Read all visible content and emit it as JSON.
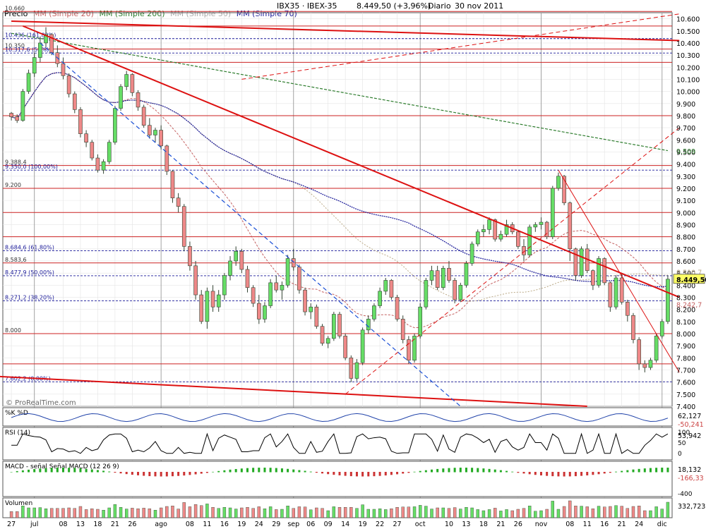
{
  "header": {
    "symbol": "IBX35 · IBEX-35",
    "last": "8.449,50 (+3,96%)",
    "period": "Diario",
    "date": "30 nov 2011",
    "legend": [
      {
        "text": "Precio",
        "color": "#8888cc"
      },
      {
        "text": "MM (Simple 20)",
        "color": "#c46060"
      },
      {
        "text": "MM (Simple 200)",
        "color": "#2e7d2e"
      },
      {
        "text": "MM (Simple 50)",
        "color": "#aaaaaa"
      },
      {
        "text": "MM (Simple 70)",
        "color": "#1a1a99"
      }
    ]
  },
  "watermark": "© ProRealTime.com",
  "colors": {
    "bull": "#66dd66",
    "bear": "#ee8888",
    "candle_edge": "#334433",
    "grid": "#c9c9c9",
    "sma20": "#c46060",
    "sma50": "#bbaa88",
    "sma70": "#1a1a99",
    "sma200": "#2e7d2e",
    "trend": "#dd1111",
    "level": "#cc2222",
    "panel_border": "#555555"
  },
  "chart_data": {
    "type": "candlestick",
    "price_axis": {
      "min": 7400,
      "max": 10650,
      "ticks": [
        "10.600",
        "10.500",
        "10.400",
        "10.300",
        "10.200",
        "10.100",
        "10.000",
        "9.900",
        "9.800",
        "9.700",
        "9.600",
        "9.500",
        "9.400",
        "9.300",
        "9.200",
        "9.100",
        "9.000",
        "8.900",
        "8.800",
        "8.700",
        "8.600",
        "8.500",
        "8.400",
        "8.300",
        "8.200",
        "8.100",
        "8.000",
        "7.900",
        "7.800",
        "7.700",
        "7.600",
        "7.500",
        "7.400"
      ]
    },
    "x_axis_labels": [
      {
        "label": "27",
        "i": 0
      },
      {
        "label": "jul",
        "i": 4
      },
      {
        "label": "08",
        "i": 9
      },
      {
        "label": "13",
        "i": 12
      },
      {
        "label": "18",
        "i": 15
      },
      {
        "label": "21",
        "i": 18
      },
      {
        "label": "26",
        "i": 21
      },
      {
        "label": "ago",
        "i": 26
      },
      {
        "label": "08",
        "i": 31
      },
      {
        "label": "11",
        "i": 34
      },
      {
        "label": "16",
        "i": 37
      },
      {
        "label": "19",
        "i": 40
      },
      {
        "label": "24",
        "i": 43
      },
      {
        "label": "29",
        "i": 46
      },
      {
        "label": "sep",
        "i": 49
      },
      {
        "label": "06",
        "i": 52
      },
      {
        "label": "09",
        "i": 55
      },
      {
        "label": "14",
        "i": 58
      },
      {
        "label": "19",
        "i": 61
      },
      {
        "label": "22",
        "i": 64
      },
      {
        "label": "27",
        "i": 67
      },
      {
        "label": "oct",
        "i": 71
      },
      {
        "label": "10",
        "i": 76
      },
      {
        "label": "13",
        "i": 79
      },
      {
        "label": "18",
        "i": 82
      },
      {
        "label": "21",
        "i": 85
      },
      {
        "label": "26",
        "i": 88
      },
      {
        "label": "nov",
        "i": 92
      },
      {
        "label": "08",
        "i": 97
      },
      {
        "label": "11",
        "i": 100
      },
      {
        "label": "16",
        "i": 103
      },
      {
        "label": "21",
        "i": 106
      },
      {
        "label": "24",
        "i": 109
      },
      {
        "label": "dic",
        "i": 113
      }
    ],
    "candles": [
      [
        9820,
        9830,
        9760,
        9790
      ],
      [
        9790,
        9810,
        9740,
        9760
      ],
      [
        9760,
        10020,
        9750,
        10000
      ],
      [
        10000,
        10180,
        9980,
        10150
      ],
      [
        10150,
        10320,
        10120,
        10280
      ],
      [
        10280,
        10450,
        10240,
        10400
      ],
      [
        10400,
        10530,
        10360,
        10470
      ],
      [
        10470,
        10480,
        10300,
        10320
      ],
      [
        10320,
        10380,
        10200,
        10230
      ],
      [
        10230,
        10280,
        10100,
        10130
      ],
      [
        10130,
        10150,
        9950,
        9980
      ],
      [
        9980,
        10000,
        9820,
        9850
      ],
      [
        9850,
        9870,
        9620,
        9650
      ],
      [
        9650,
        9680,
        9540,
        9580
      ],
      [
        9580,
        9600,
        9430,
        9450
      ],
      [
        9450,
        9480,
        9330,
        9350
      ],
      [
        9350,
        9440,
        9320,
        9420
      ],
      [
        9420,
        9600,
        9400,
        9580
      ],
      [
        9580,
        9880,
        9560,
        9860
      ],
      [
        9860,
        10060,
        9840,
        10040
      ],
      [
        10040,
        10170,
        10010,
        10140
      ],
      [
        10140,
        10150,
        9960,
        9990
      ],
      [
        9990,
        10010,
        9840,
        9870
      ],
      [
        9870,
        9890,
        9700,
        9720
      ],
      [
        9720,
        9780,
        9610,
        9640
      ],
      [
        9640,
        9700,
        9580,
        9680
      ],
      [
        9680,
        9720,
        9520,
        9550
      ],
      [
        9550,
        9560,
        9310,
        9340
      ],
      [
        9340,
        9350,
        9080,
        9120
      ],
      [
        9120,
        9160,
        9000,
        9050
      ],
      [
        9050,
        9070,
        8680,
        8720
      ],
      [
        8720,
        8760,
        8520,
        8560
      ],
      [
        8560,
        8600,
        8280,
        8320
      ],
      [
        8320,
        8360,
        8080,
        8100
      ],
      [
        8100,
        8380,
        8040,
        8350
      ],
      [
        8350,
        8400,
        8180,
        8220
      ],
      [
        8220,
        8360,
        8180,
        8320
      ],
      [
        8320,
        8500,
        8280,
        8480
      ],
      [
        8480,
        8640,
        8440,
        8600
      ],
      [
        8600,
        8720,
        8560,
        8680
      ],
      [
        8680,
        8700,
        8500,
        8530
      ],
      [
        8530,
        8560,
        8340,
        8380
      ],
      [
        8380,
        8400,
        8220,
        8250
      ],
      [
        8250,
        8320,
        8080,
        8120
      ],
      [
        8120,
        8260,
        8090,
        8230
      ],
      [
        8230,
        8450,
        8210,
        8420
      ],
      [
        8420,
        8480,
        8340,
        8360
      ],
      [
        8360,
        8430,
        8280,
        8400
      ],
      [
        8400,
        8650,
        8380,
        8620
      ],
      [
        8620,
        8700,
        8520,
        8550
      ],
      [
        8550,
        8570,
        8330,
        8360
      ],
      [
        8360,
        8380,
        8150,
        8180
      ],
      [
        8180,
        8250,
        8120,
        8220
      ],
      [
        8220,
        8240,
        8040,
        8060
      ],
      [
        8060,
        8080,
        7900,
        7920
      ],
      [
        7920,
        7980,
        7880,
        7960
      ],
      [
        7960,
        8180,
        7940,
        8160
      ],
      [
        8160,
        8180,
        7960,
        7980
      ],
      [
        7980,
        8000,
        7780,
        7800
      ],
      [
        7800,
        7820,
        7600,
        7630
      ],
      [
        7630,
        7790,
        7610,
        7760
      ],
      [
        7760,
        8050,
        7740,
        8030
      ],
      [
        8030,
        8150,
        8000,
        8120
      ],
      [
        8120,
        8250,
        8100,
        8230
      ],
      [
        8230,
        8380,
        8210,
        8350
      ],
      [
        8350,
        8460,
        8320,
        8440
      ],
      [
        8440,
        8450,
        8280,
        8300
      ],
      [
        8300,
        8320,
        8100,
        8120
      ],
      [
        8120,
        8150,
        7920,
        7950
      ],
      [
        7950,
        7980,
        7750,
        7780
      ],
      [
        7780,
        8000,
        7760,
        7980
      ],
      [
        7980,
        8250,
        7960,
        8220
      ],
      [
        8220,
        8460,
        8200,
        8440
      ],
      [
        8440,
        8560,
        8400,
        8520
      ],
      [
        8520,
        8560,
        8360,
        8380
      ],
      [
        8380,
        8560,
        8360,
        8540
      ],
      [
        8540,
        8600,
        8420,
        8440
      ],
      [
        8440,
        8460,
        8250,
        8280
      ],
      [
        8280,
        8420,
        8260,
        8400
      ],
      [
        8400,
        8600,
        8380,
        8580
      ],
      [
        8580,
        8760,
        8560,
        8740
      ],
      [
        8740,
        8860,
        8720,
        8840
      ],
      [
        8840,
        8900,
        8800,
        8860
      ],
      [
        8860,
        8960,
        8820,
        8940
      ],
      [
        8940,
        8950,
        8760,
        8780
      ],
      [
        8780,
        8850,
        8760,
        8820
      ],
      [
        8820,
        8940,
        8800,
        8900
      ],
      [
        8900,
        8920,
        8820,
        8840
      ],
      [
        8840,
        8850,
        8700,
        8720
      ],
      [
        8720,
        8780,
        8600,
        8650
      ],
      [
        8650,
        8900,
        8630,
        8880
      ],
      [
        8880,
        8920,
        8840,
        8900
      ],
      [
        8900,
        8960,
        8860,
        8920
      ],
      [
        8920,
        8930,
        8780,
        8800
      ],
      [
        8800,
        9220,
        8780,
        9200
      ],
      [
        9200,
        9330,
        9180,
        9300
      ],
      [
        9300,
        9310,
        9060,
        9080
      ],
      [
        9080,
        9090,
        8600,
        8700
      ],
      [
        8700,
        8710,
        8440,
        8480
      ],
      [
        8480,
        8720,
        8460,
        8700
      ],
      [
        8700,
        8740,
        8500,
        8520
      ],
      [
        8520,
        8530,
        8360,
        8400
      ],
      [
        8400,
        8640,
        8380,
        8620
      ],
      [
        8620,
        8630,
        8400,
        8420
      ],
      [
        8420,
        8430,
        8180,
        8220
      ],
      [
        8220,
        8480,
        8200,
        8460
      ],
      [
        8460,
        8500,
        8240,
        8260
      ],
      [
        8260,
        8280,
        8100,
        8150
      ],
      [
        8150,
        8170,
        7920,
        7950
      ],
      [
        7950,
        7970,
        7700,
        7750
      ],
      [
        7750,
        7780,
        7680,
        7720
      ],
      [
        7720,
        7800,
        7700,
        7780
      ],
      [
        7780,
        8000,
        7760,
        7980
      ],
      [
        7980,
        8120,
        7960,
        8100
      ],
      [
        8100,
        8480,
        8080,
        8449.5
      ]
    ],
    "horizontal_levels": [
      {
        "value": 10660,
        "label": "10.660",
        "style": "solid"
      },
      {
        "value": 10540,
        "label": "",
        "style": "solid"
      },
      {
        "value": 10436,
        "label": "10.436 (161,80%)",
        "style": "dashed"
      },
      {
        "value": 10350,
        "label": "10.350",
        "style": "solid"
      },
      {
        "value": 10317,
        "label": "10.317,6 (50%)",
        "style": "dashed"
      },
      {
        "value": 10240,
        "label": "",
        "style": "solid"
      },
      {
        "value": 9800,
        "label": "",
        "style": "solid"
      },
      {
        "value": 9388.4,
        "label": "9.388,4",
        "style": "solid"
      },
      {
        "value": 9350,
        "label": "9.350,0 (100,00%)",
        "style": "dashed"
      },
      {
        "value": 9200,
        "label": "9.200",
        "style": "solid"
      },
      {
        "value": 9000,
        "label": "",
        "style": "solid"
      },
      {
        "value": 8800,
        "label": "",
        "style": "solid"
      },
      {
        "value": 8684.6,
        "label": "8.684,6 (61,80%)",
        "style": "dashed"
      },
      {
        "value": 8583.6,
        "label": "8.583,6",
        "style": "solid"
      },
      {
        "value": 8477.9,
        "label": "8.477,9 (50,00%)",
        "style": "dashed"
      },
      {
        "value": 8271.2,
        "label": "8.271,2 (38,20%)",
        "style": "dashed"
      },
      {
        "value": 8000,
        "label": "8.000",
        "style": "solid"
      },
      {
        "value": 7750,
        "label": "",
        "style": "solid"
      },
      {
        "value": 7602.2,
        "label": "7.602,2 (0,00%)",
        "style": "dashed"
      }
    ],
    "trendlines": [
      {
        "from": [
          0,
          10580
        ],
        "to": [
          116,
          10420
        ],
        "width": 2
      },
      {
        "from": [
          -4,
          7650
        ],
        "to": [
          100,
          7400
        ],
        "width": 2
      },
      {
        "from": [
          2,
          10540
        ],
        "to": [
          116,
          8300
        ],
        "width": 2
      },
      {
        "from": [
          95,
          9350
        ],
        "to": [
          116,
          7680
        ],
        "width": 1
      },
      {
        "from": [
          58,
          7500
        ],
        "to": [
          116,
          9700
        ],
        "width": 1,
        "dash": true
      },
      {
        "from": [
          40,
          10100
        ],
        "to": [
          116,
          10640
        ],
        "width": 1,
        "dash": true
      },
      {
        "from": [
          5,
          10400
        ],
        "to": [
          78,
          7400
        ],
        "width": 1.2,
        "dash": true,
        "color": "#1a4fd6"
      }
    ],
    "price_markers": [
      {
        "value": 9509,
        "label": "9.509",
        "color": "#2e7d2e",
        "box": false
      },
      {
        "value": 8510.7,
        "label": "8.510,7",
        "color": "#bbaa88",
        "box": false
      },
      {
        "value": 8449.5,
        "label": "8.449,50",
        "color": "#000000",
        "box": true
      },
      {
        "value": 8242.7,
        "label": "8.242,7",
        "color": "#c46060",
        "box": false
      }
    ],
    "indicators": [
      {
        "name": "%K",
        "label": "%K  %D",
        "value": "62,127",
        "lower": "-50,241"
      },
      {
        "name": "RSI",
        "label": "RSI (14)",
        "value": "53,942",
        "ticks": [
          "100",
          "50",
          "0"
        ]
      },
      {
        "name": "MACD",
        "label": "MACD - señal  Señal  MACD (12 26 9)",
        "value": "18,132",
        "lower": "-166,33",
        "bottom_tick": "-400"
      },
      {
        "name": "Volumen",
        "label": "Volumen",
        "value": "332,723"
      }
    ]
  }
}
